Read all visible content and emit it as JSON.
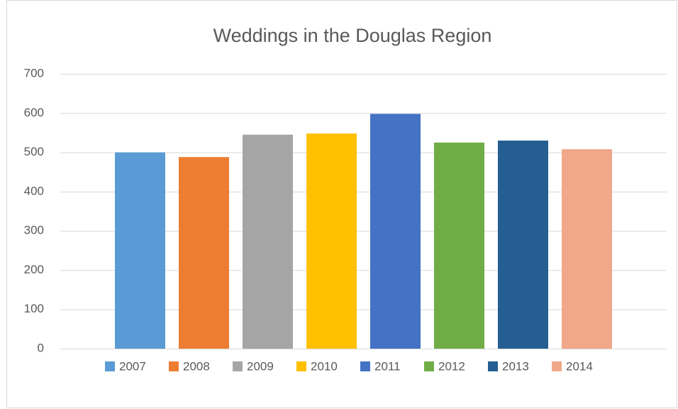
{
  "chart_data": {
    "type": "bar",
    "title": "Weddings in the Douglas Region",
    "categories": [
      null
    ],
    "series": [
      {
        "name": "2007",
        "color": "#5b9bd5",
        "values": [
          500
        ]
      },
      {
        "name": "2008",
        "color": "#ed7d31",
        "values": [
          488
        ]
      },
      {
        "name": "2009",
        "color": "#a5a5a5",
        "values": [
          545
        ]
      },
      {
        "name": "2010",
        "color": "#ffc000",
        "values": [
          548
        ]
      },
      {
        "name": "2011",
        "color": "#4472c4",
        "values": [
          598
        ]
      },
      {
        "name": "2012",
        "color": "#70ad47",
        "values": [
          525
        ]
      },
      {
        "name": "2013",
        "color": "#255e91",
        "values": [
          530
        ]
      },
      {
        "name": "2014",
        "color": "#f1a78a",
        "values": [
          508
        ]
      }
    ],
    "ylim": [
      0,
      700
    ],
    "yticks": [
      0,
      100,
      200,
      300,
      400,
      500,
      600,
      700
    ],
    "grid": true,
    "legend": "bottom"
  }
}
